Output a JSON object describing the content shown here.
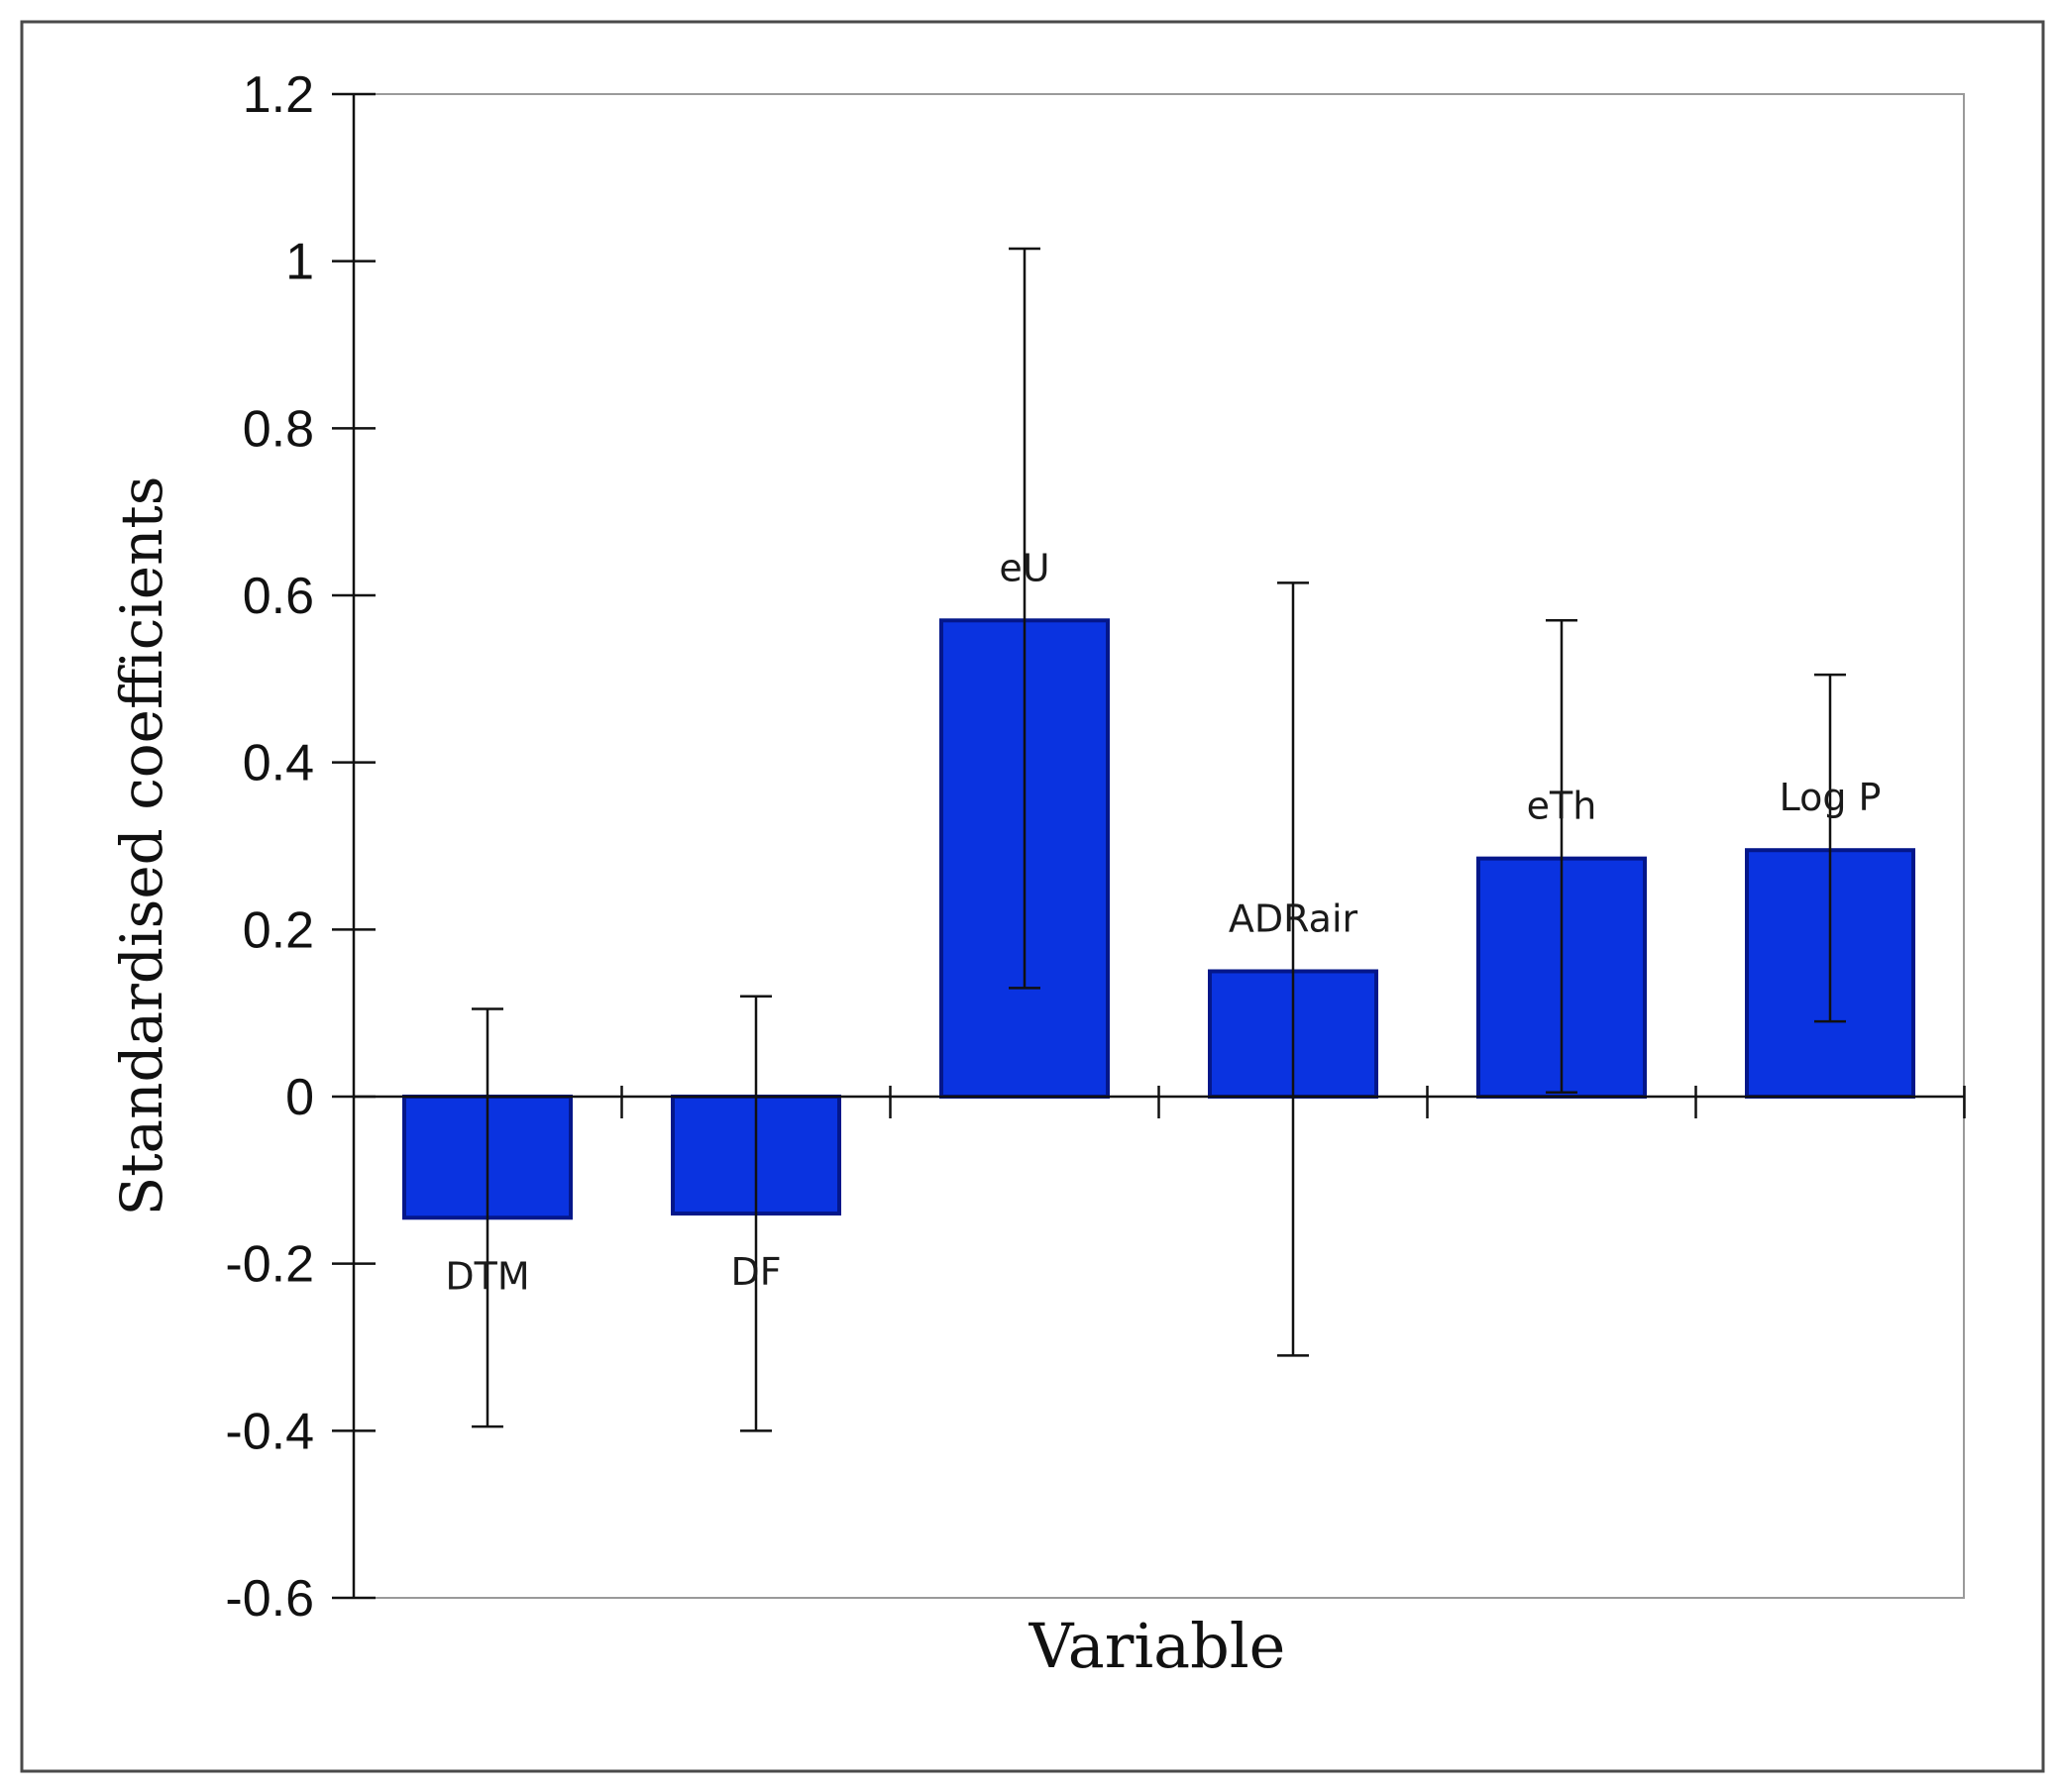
{
  "chart_data": {
    "type": "bar",
    "title": "",
    "xlabel": "Variable",
    "ylabel": "Standardised coefficients",
    "ylim": [
      -0.6,
      1.2
    ],
    "yticks": [
      -0.6,
      -0.4,
      -0.2,
      0,
      0.2,
      0.4,
      0.6,
      0.8,
      1,
      1.2
    ],
    "ytick_labels": [
      "-0.6",
      "-0.4",
      "-0.2",
      "0",
      "0.2",
      "0.4",
      "0.6",
      "0.8",
      "1",
      "1.2"
    ],
    "grid": false,
    "legend": "none",
    "categories": [
      "DTM",
      "DF",
      "eU",
      "ADRair",
      "eTh",
      "Log P"
    ],
    "values": [
      -0.145,
      -0.14,
      0.57,
      0.15,
      0.285,
      0.295
    ],
    "error_low": [
      -0.395,
      -0.4,
      0.13,
      -0.31,
      0.005,
      0.09
    ],
    "error_high": [
      0.105,
      0.12,
      1.015,
      0.615,
      0.57,
      0.505
    ],
    "colors": {
      "bar_fill": "#0a33e0",
      "bar_edge": "#04178a",
      "axis": "#111111",
      "frame": "#9a9a9a",
      "outer_border": "#4a4a4a",
      "error_bar": "#111111"
    }
  }
}
